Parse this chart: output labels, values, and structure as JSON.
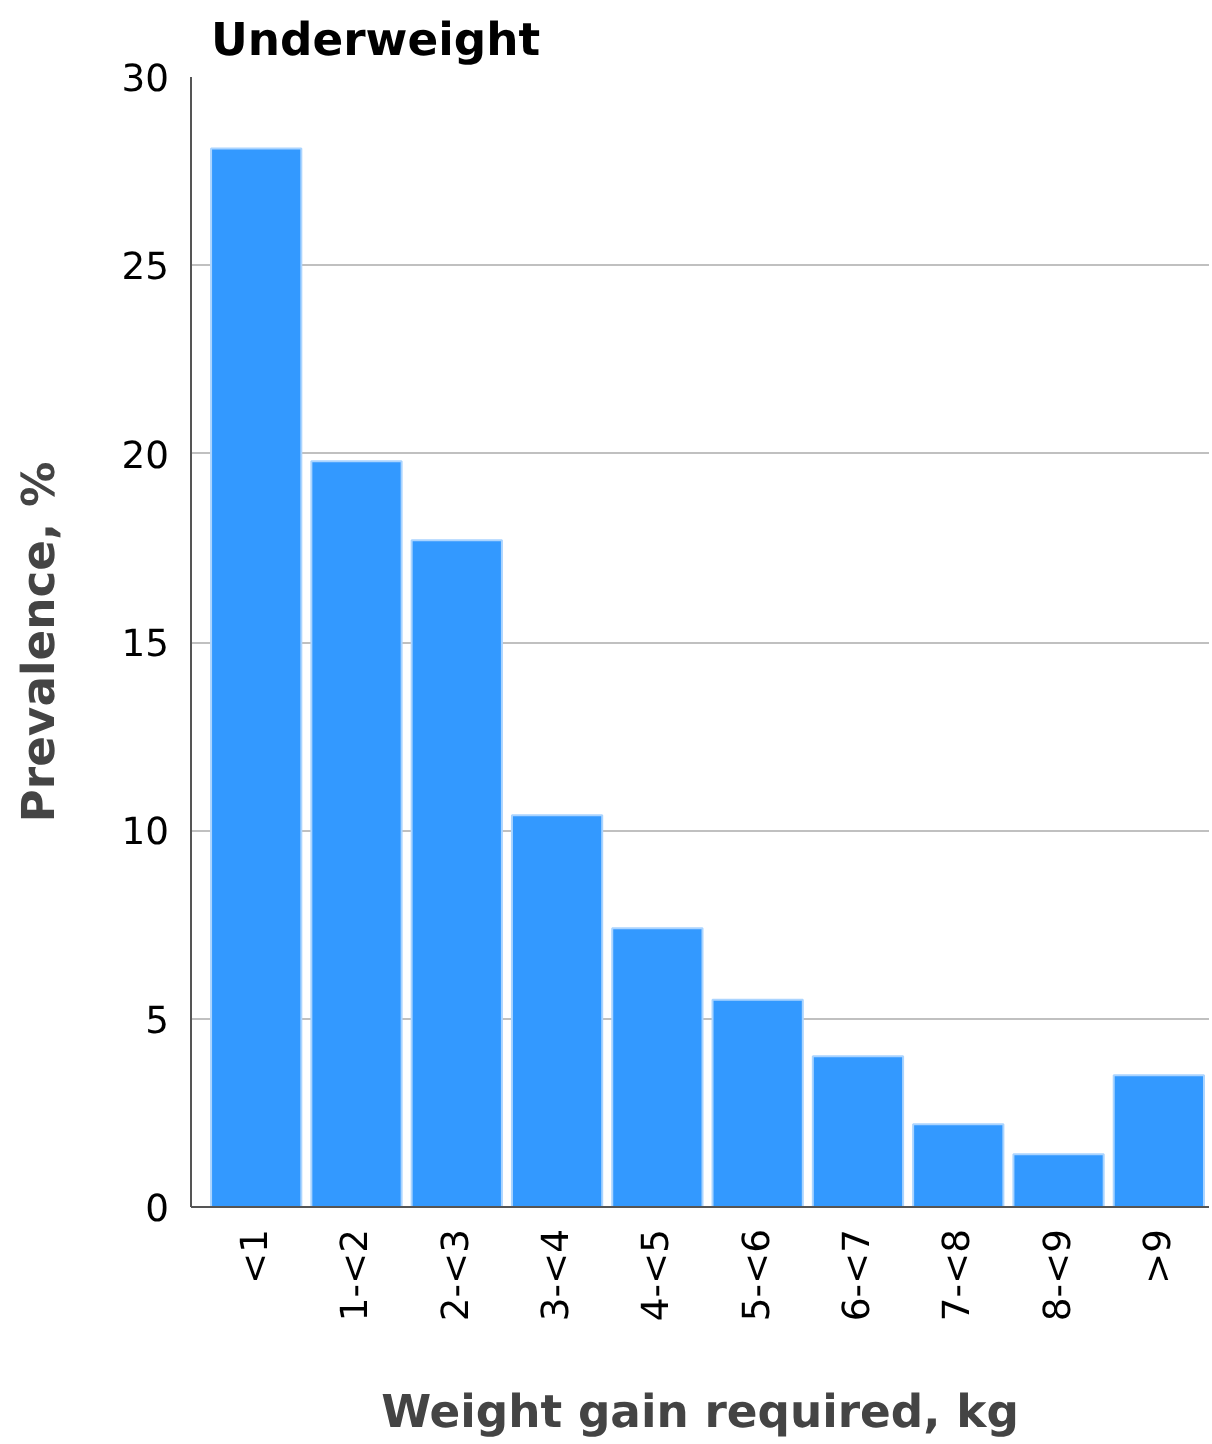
{
  "chart_data": {
    "type": "bar",
    "title": "Underweight",
    "xlabel": "Weight gain required, kg",
    "ylabel": "Prevalence, %",
    "categories": [
      "<1",
      "1-<2",
      "2-<3",
      "3-<4",
      "4-<5",
      "5-<6",
      "6-<7",
      "7-<8",
      "8-<9",
      ">9"
    ],
    "values": [
      28.1,
      19.8,
      17.7,
      10.4,
      7.4,
      5.5,
      4.0,
      2.2,
      1.4,
      3.5
    ],
    "color": "#3399ff",
    "ylim": [
      0,
      30
    ],
    "yticks": [
      0,
      5,
      10,
      15,
      20,
      25,
      30
    ],
    "grid": "y"
  }
}
